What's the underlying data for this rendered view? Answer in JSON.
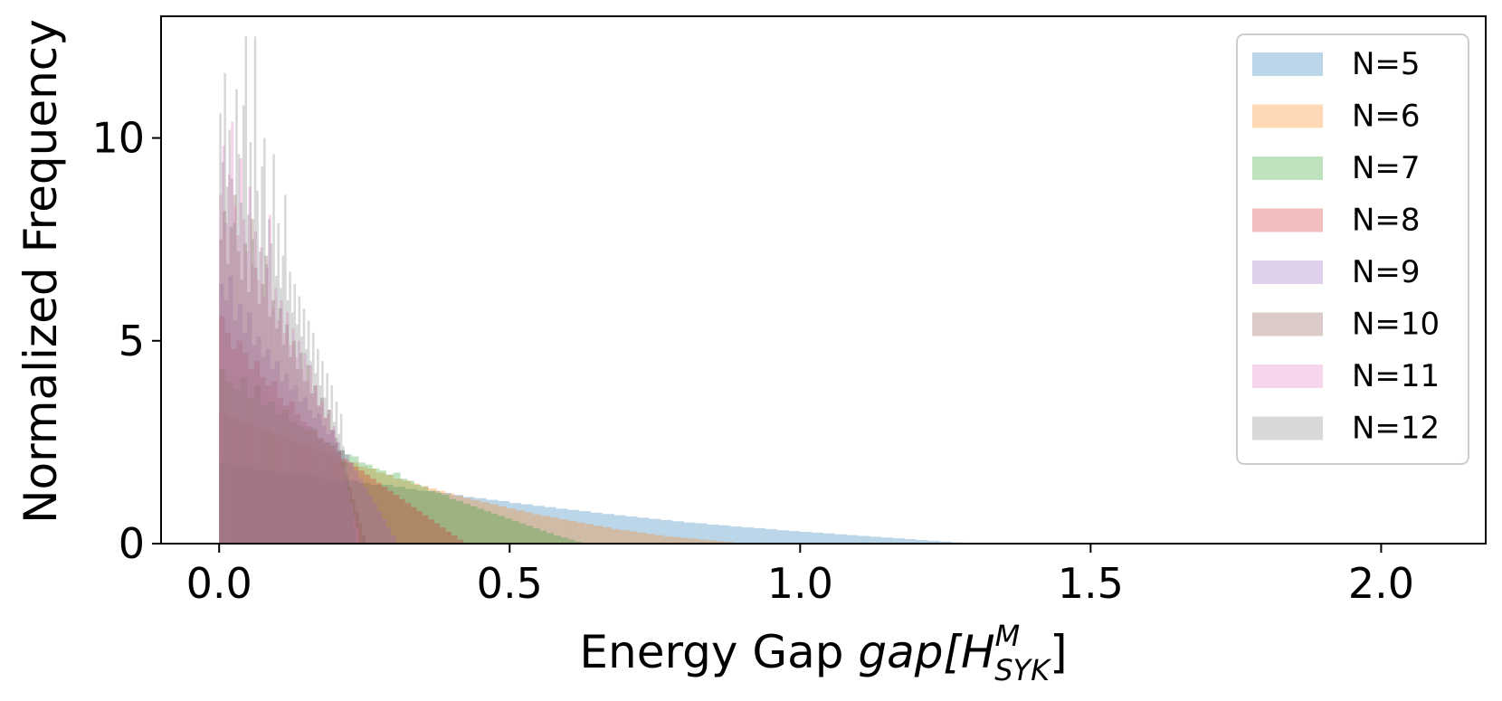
{
  "chart_data": {
    "type": "bar",
    "subtype": "overlapping-histogram",
    "title": "",
    "xlabel": "Energy Gap",
    "xlabel_math": {
      "base": "gap[H",
      "sup": "M",
      "sub": "SYK",
      "close": "]"
    },
    "ylabel": "Normalized Frequency",
    "xlim": [
      -0.1,
      2.18
    ],
    "ylim": [
      0,
      13.0
    ],
    "xticks": [
      0.0,
      0.5,
      1.0,
      1.5,
      2.0
    ],
    "xtick_labels": [
      "0.0",
      "0.5",
      "1.0",
      "1.5",
      "2.0"
    ],
    "yticks": [
      0,
      5,
      10
    ],
    "ytick_labels": [
      "0",
      "5",
      "10"
    ],
    "grid": false,
    "legend_position": "top-right",
    "opacity": 0.3,
    "series": [
      {
        "name": "N=5",
        "color": "#1f77b4",
        "bin_start": 0.0,
        "bin_width": 0.02,
        "values": [
          2.0,
          1.9,
          1.9,
          1.8,
          1.8,
          1.75,
          1.7,
          1.7,
          1.65,
          1.6,
          1.55,
          1.55,
          1.5,
          1.45,
          1.45,
          1.4,
          1.35,
          1.3,
          1.3,
          1.25,
          1.2,
          1.15,
          1.12,
          1.08,
          1.05,
          1.0,
          0.97,
          0.93,
          0.9,
          0.86,
          0.83,
          0.8,
          0.76,
          0.73,
          0.7,
          0.67,
          0.64,
          0.61,
          0.58,
          0.55,
          0.52,
          0.5,
          0.47,
          0.45,
          0.42,
          0.4,
          0.38,
          0.36,
          0.33,
          0.31,
          0.29,
          0.27,
          0.25,
          0.23,
          0.21,
          0.19,
          0.17,
          0.15,
          0.13,
          0.11,
          0.09,
          0.07,
          0.05,
          0.03,
          0.02
        ]
      },
      {
        "name": "N=6",
        "color": "#ff7f0e",
        "bin_start": 0.0,
        "bin_width": 0.015,
        "values": [
          3.2,
          3.1,
          3.0,
          2.95,
          2.85,
          2.8,
          2.7,
          2.6,
          2.55,
          2.45,
          2.4,
          2.3,
          2.2,
          2.15,
          2.05,
          2.0,
          1.9,
          1.85,
          1.75,
          1.7,
          1.6,
          1.55,
          1.48,
          1.42,
          1.36,
          1.3,
          1.24,
          1.18,
          1.12,
          1.07,
          1.02,
          0.97,
          0.92,
          0.87,
          0.82,
          0.77,
          0.72,
          0.68,
          0.64,
          0.6,
          0.56,
          0.52,
          0.48,
          0.44,
          0.4,
          0.36,
          0.33,
          0.3,
          0.27,
          0.24,
          0.21,
          0.18,
          0.16,
          0.14,
          0.12,
          0.1,
          0.08,
          0.06,
          0.04,
          0.02
        ]
      },
      {
        "name": "N=7",
        "color": "#2ca02c",
        "bin_start": 0.0,
        "bin_width": 0.012,
        "values": [
          4.3,
          4.0,
          3.8,
          4.1,
          3.6,
          3.9,
          3.4,
          3.5,
          3.2,
          3.3,
          3.0,
          2.9,
          2.8,
          2.85,
          2.6,
          2.5,
          2.45,
          2.3,
          2.2,
          2.15,
          2.0,
          1.95,
          1.85,
          1.8,
          1.7,
          1.75,
          1.6,
          1.55,
          1.45,
          1.4,
          1.3,
          1.25,
          1.2,
          1.1,
          1.05,
          0.98,
          0.92,
          0.86,
          0.8,
          0.74,
          0.68,
          0.62,
          0.56,
          0.5,
          0.44,
          0.38,
          0.32,
          0.26,
          0.2,
          0.15,
          0.1,
          0.05
        ]
      },
      {
        "name": "N=8",
        "color": "#d62728",
        "bin_start": 0.0,
        "bin_width": 0.01,
        "values": [
          5.6,
          5.2,
          4.8,
          5.0,
          4.7,
          4.3,
          4.5,
          4.1,
          3.9,
          4.0,
          3.6,
          3.4,
          3.5,
          3.2,
          3.0,
          2.9,
          2.8,
          2.6,
          2.5,
          2.4,
          2.25,
          2.1,
          2.0,
          1.9,
          1.8,
          1.7,
          1.6,
          1.5,
          1.4,
          1.3,
          1.2,
          1.1,
          1.0,
          0.9,
          0.8,
          0.7,
          0.6,
          0.5,
          0.4,
          0.3,
          0.2,
          0.1
        ]
      },
      {
        "name": "N=9",
        "color": "#9467bd",
        "bin_start": 0.0,
        "bin_width": 0.008,
        "values": [
          6.4,
          6.0,
          6.6,
          5.5,
          5.9,
          5.2,
          5.7,
          4.9,
          5.1,
          4.6,
          4.8,
          4.3,
          4.5,
          4.0,
          4.2,
          3.8,
          3.9,
          3.5,
          3.6,
          3.3,
          3.1,
          3.2,
          2.9,
          2.7,
          2.8,
          2.5,
          2.3,
          2.2,
          2.0,
          1.8,
          1.6,
          1.4,
          1.2,
          1.0,
          0.8,
          0.6,
          0.4,
          0.2
        ]
      },
      {
        "name": "N=10",
        "color": "#8c564b",
        "bin_start": 0.0,
        "bin_width": 0.006,
        "values": [
          7.5,
          8.2,
          6.9,
          7.8,
          8.6,
          7.2,
          6.5,
          7.4,
          6.2,
          8.0,
          6.8,
          5.9,
          6.4,
          7.1,
          5.6,
          6.0,
          5.3,
          5.8,
          4.9,
          5.4,
          4.6,
          5.0,
          4.3,
          4.7,
          4.0,
          4.4,
          3.7,
          3.9,
          3.4,
          3.6,
          3.1,
          3.3,
          2.8,
          2.6,
          2.3,
          2.0,
          1.7,
          1.4,
          1.1,
          0.8,
          0.5,
          0.2
        ]
      },
      {
        "name": "N=11",
        "color": "#e377c2",
        "bin_start": 0.0,
        "bin_width": 0.005,
        "values": [
          8.6,
          9.8,
          7.9,
          9.1,
          10.4,
          8.3,
          7.6,
          9.5,
          8.0,
          7.2,
          8.8,
          6.9,
          7.7,
          6.5,
          7.3,
          6.1,
          6.8,
          8.1,
          5.8,
          6.3,
          5.5,
          6.0,
          5.2,
          5.7,
          4.9,
          5.3,
          4.6,
          5.0,
          4.3,
          4.7,
          4.0,
          4.4,
          3.7,
          3.9,
          3.4,
          3.5,
          3.1,
          3.2,
          2.8,
          2.9,
          2.5,
          2.2,
          1.9,
          1.6,
          1.3,
          1.0,
          0.7,
          0.4
        ]
      },
      {
        "name": "N=12",
        "color": "#7f7f7f",
        "bin_start": 0.0,
        "bin_width": 0.004,
        "values": [
          10.6,
          9.4,
          11.6,
          8.8,
          10.2,
          9.0,
          7.9,
          11.2,
          9.6,
          8.4,
          10.8,
          12.5,
          8.1,
          9.9,
          7.5,
          12.5,
          8.7,
          7.2,
          9.3,
          10.0,
          6.9,
          8.0,
          7.4,
          9.6,
          6.6,
          7.9,
          6.3,
          7.1,
          8.6,
          6.0,
          6.7,
          5.7,
          6.4,
          5.4,
          6.1,
          5.1,
          5.8,
          4.8,
          5.5,
          4.5,
          5.2,
          4.2,
          4.8,
          3.9,
          4.5,
          3.6,
          4.2,
          3.3,
          3.9,
          3.0,
          3.5,
          2.7,
          3.2,
          2.4,
          2.0,
          1.6,
          1.2,
          0.8,
          0.4
        ]
      }
    ]
  }
}
